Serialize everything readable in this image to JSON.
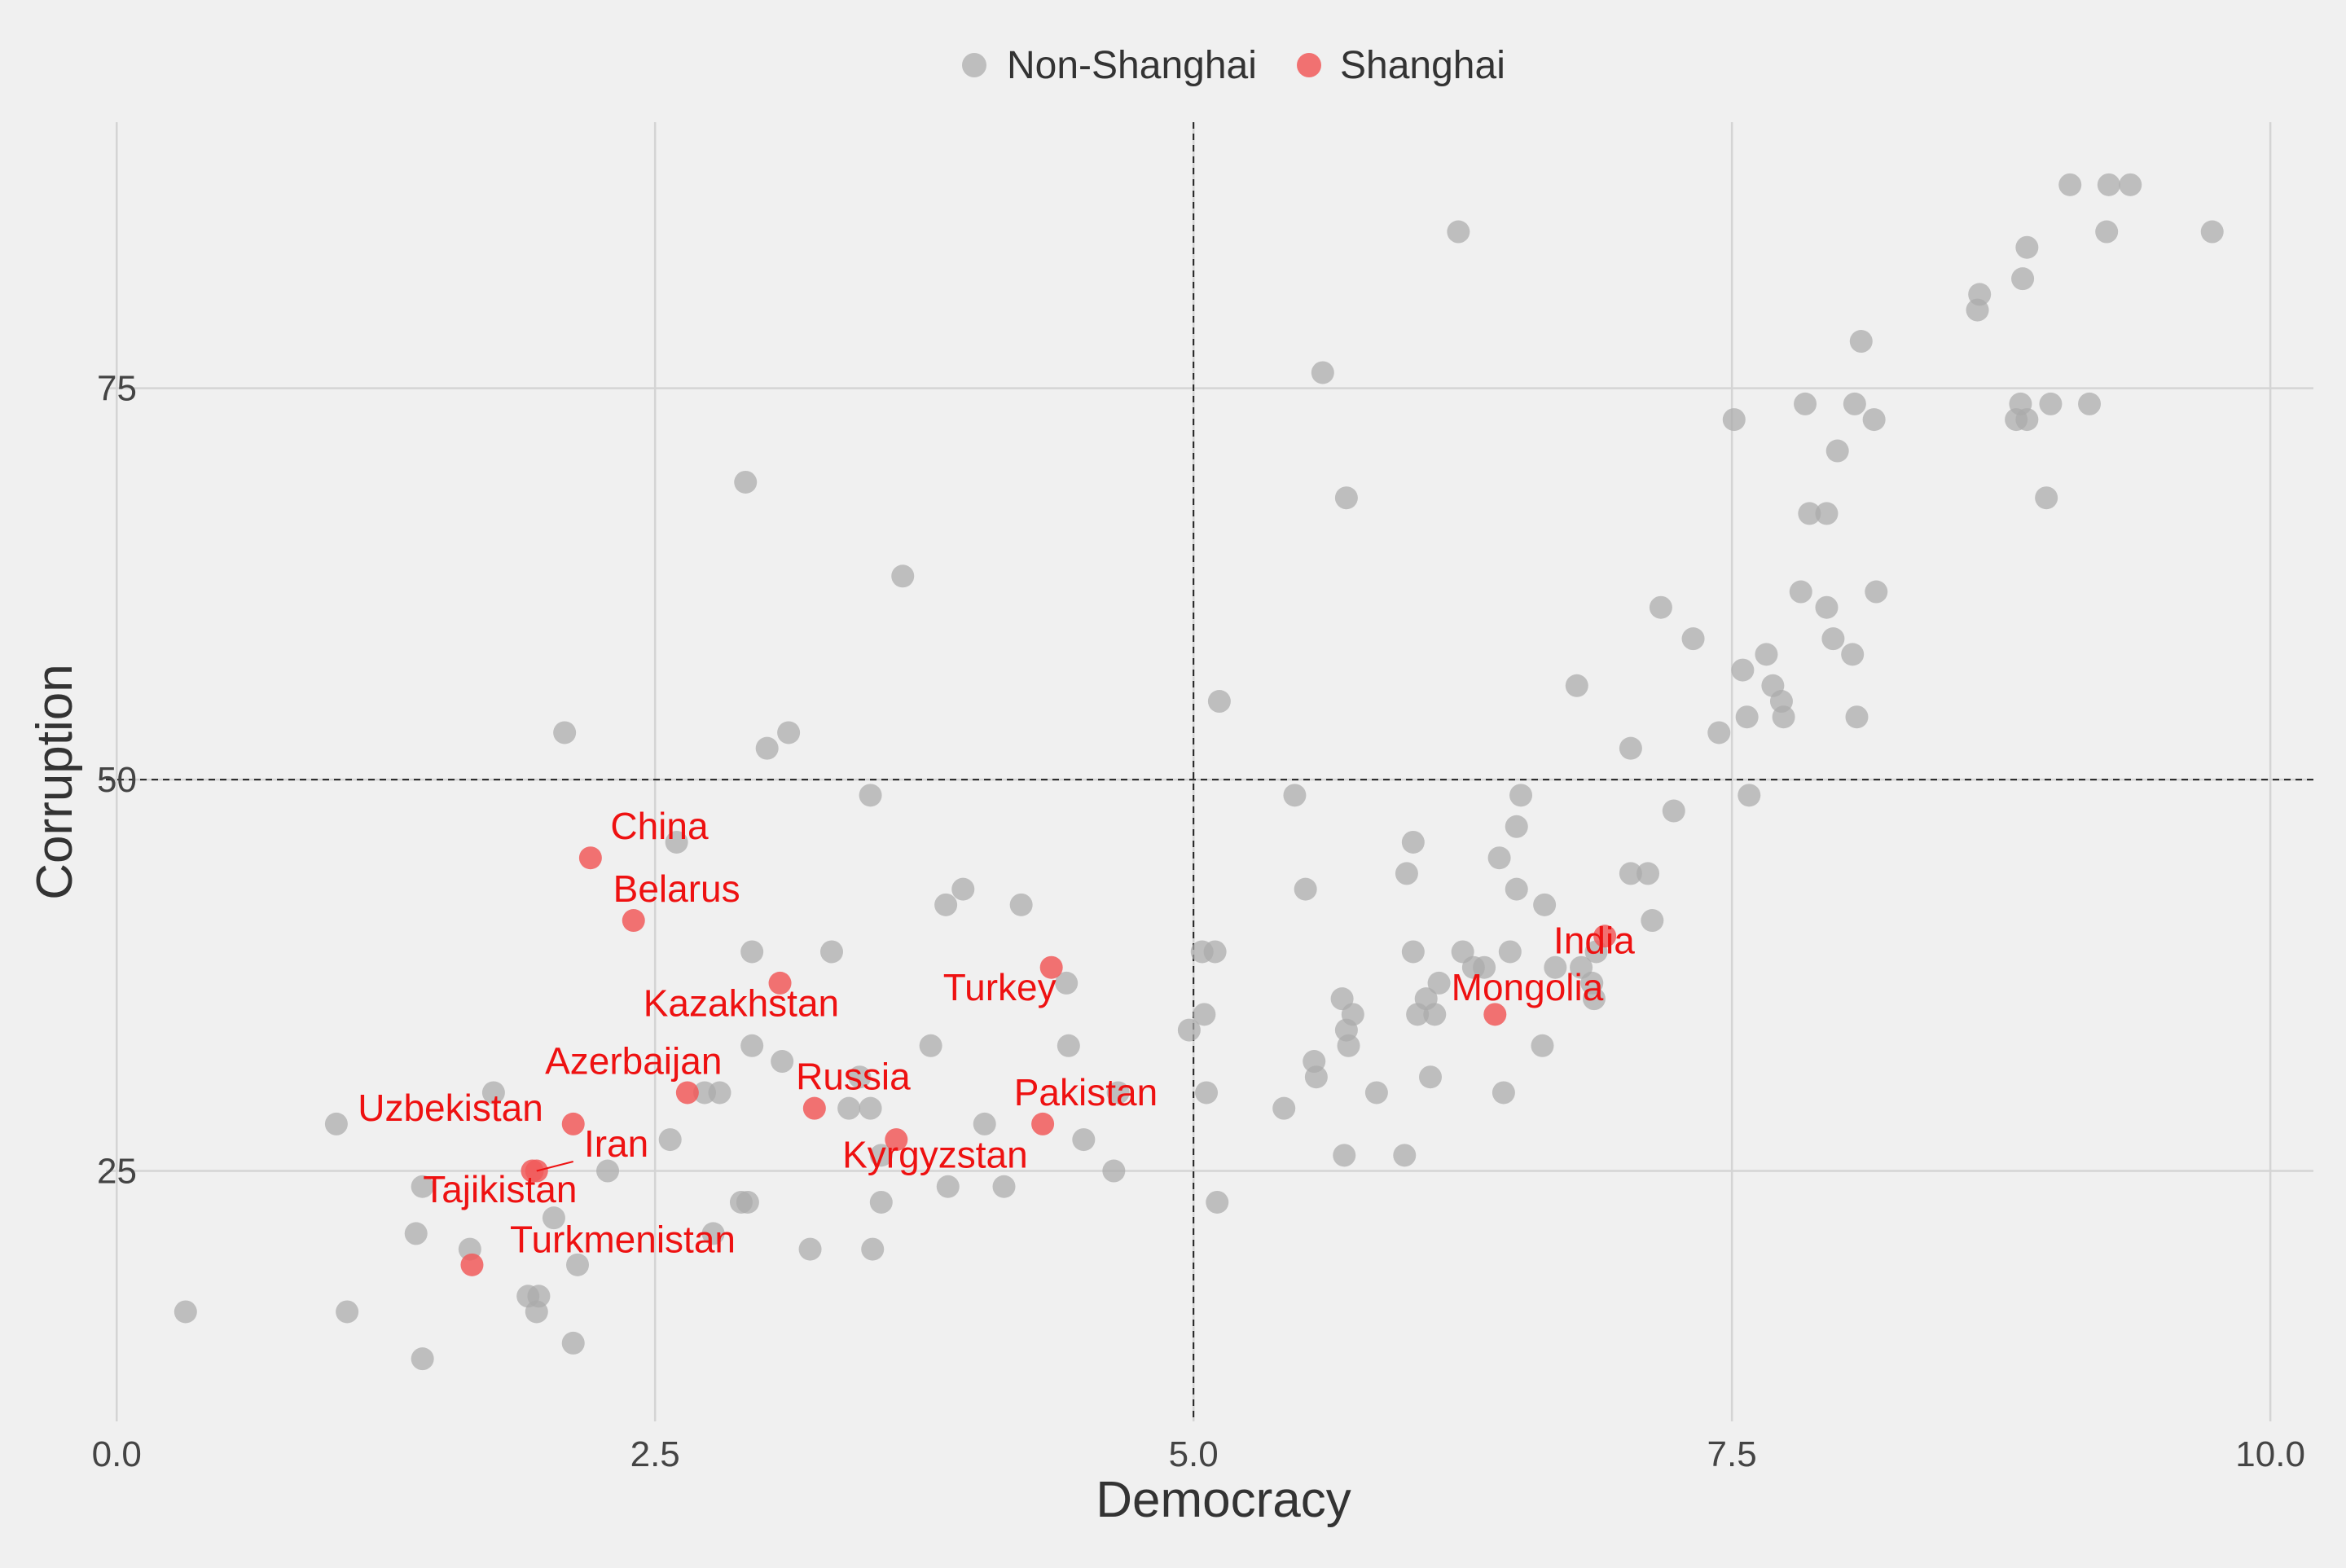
{
  "chart_data": {
    "type": "scatter",
    "title": "",
    "xlabel": "Democracy",
    "ylabel": "Corruption",
    "xlim": [
      -0.05,
      10.2
    ],
    "ylim": [
      9,
      92
    ],
    "x_ticks": [
      0.0,
      2.5,
      5.0,
      7.5,
      10.0
    ],
    "x_tick_labels": [
      "0.0",
      "2.5",
      "5.0",
      "7.5",
      "10.0"
    ],
    "y_ticks": [
      25,
      50,
      75
    ],
    "y_tick_labels": [
      "25",
      "50",
      "75"
    ],
    "grid": true,
    "reference_lines": {
      "x": 5.0,
      "y": 50,
      "style": "dashed"
    },
    "legend": {
      "position": "top",
      "entries": [
        {
          "label": "Non-Shanghai",
          "color": "#aaaaaa"
        },
        {
          "label": "Shanghai",
          "color": "#f15a5a"
        }
      ]
    },
    "colors": {
      "non_shanghai": "#aaaaaa",
      "shanghai": "#f15a5a",
      "label_text": "#ee1111",
      "grid": "#d4d4d4",
      "axis_text": "#444444",
      "title_text": "#333333"
    },
    "series": [
      {
        "name": "Non-Shanghai",
        "points": [
          [
            0.32,
            16
          ],
          [
            1.07,
            16
          ],
          [
            1.02,
            28
          ],
          [
            1.42,
            13
          ],
          [
            1.42,
            24
          ],
          [
            1.39,
            21
          ],
          [
            1.64,
            20
          ],
          [
            1.75,
            30
          ],
          [
            1.91,
            17
          ],
          [
            1.95,
            16
          ],
          [
            1.96,
            17
          ],
          [
            2.03,
            22
          ],
          [
            2.08,
            53
          ],
          [
            2.12,
            14
          ],
          [
            2.14,
            19
          ],
          [
            2.28,
            25
          ],
          [
            2.57,
            27
          ],
          [
            2.6,
            46
          ],
          [
            2.73,
            30
          ],
          [
            2.77,
            21
          ],
          [
            2.8,
            30
          ],
          [
            2.9,
            23
          ],
          [
            2.93,
            23
          ],
          [
            2.95,
            33
          ],
          [
            2.95,
            39
          ],
          [
            2.92,
            69
          ],
          [
            3.02,
            52
          ],
          [
            3.12,
            53
          ],
          [
            3.09,
            32
          ],
          [
            3.22,
            20
          ],
          [
            3.32,
            39
          ],
          [
            3.4,
            29
          ],
          [
            3.45,
            31
          ],
          [
            3.5,
            29
          ],
          [
            3.51,
            20
          ],
          [
            3.5,
            49
          ],
          [
            3.55,
            23
          ],
          [
            3.55,
            26
          ],
          [
            3.65,
            63
          ],
          [
            3.78,
            33
          ],
          [
            3.85,
            42
          ],
          [
            3.86,
            24
          ],
          [
            3.93,
            43
          ],
          [
            4.03,
            28
          ],
          [
            4.12,
            24
          ],
          [
            4.2,
            42
          ],
          [
            4.41,
            37
          ],
          [
            4.42,
            33
          ],
          [
            4.49,
            27
          ],
          [
            4.63,
            25
          ],
          [
            4.65,
            30
          ],
          [
            4.98,
            34
          ],
          [
            5.05,
            35
          ],
          [
            5.04,
            39
          ],
          [
            5.06,
            30
          ],
          [
            5.1,
            39
          ],
          [
            5.11,
            23
          ],
          [
            5.12,
            55
          ],
          [
            5.42,
            29
          ],
          [
            5.47,
            49
          ],
          [
            5.52,
            43
          ],
          [
            5.56,
            32
          ],
          [
            5.57,
            31
          ],
          [
            5.6,
            76
          ],
          [
            5.69,
            36
          ],
          [
            5.7,
            26
          ],
          [
            5.71,
            34
          ],
          [
            5.72,
            33
          ],
          [
            5.74,
            35
          ],
          [
            5.71,
            68
          ],
          [
            5.85,
            30
          ],
          [
            5.98,
            26
          ],
          [
            5.99,
            44
          ],
          [
            6.02,
            46
          ],
          [
            6.02,
            39
          ],
          [
            6.04,
            35
          ],
          [
            6.08,
            36
          ],
          [
            6.1,
            31
          ],
          [
            6.12,
            35
          ],
          [
            6.14,
            37
          ],
          [
            6.23,
            85
          ],
          [
            6.25,
            39
          ],
          [
            6.3,
            38
          ],
          [
            6.35,
            38
          ],
          [
            6.42,
            45
          ],
          [
            6.44,
            30
          ],
          [
            6.47,
            39
          ],
          [
            6.5,
            43
          ],
          [
            6.5,
            47
          ],
          [
            6.52,
            49
          ],
          [
            6.62,
            33
          ],
          [
            6.63,
            42
          ],
          [
            6.68,
            38
          ],
          [
            6.8,
            38
          ],
          [
            6.78,
            56
          ],
          [
            6.85,
            37
          ],
          [
            6.86,
            36
          ],
          [
            6.87,
            39
          ],
          [
            7.03,
            44
          ],
          [
            7.03,
            52
          ],
          [
            7.11,
            44
          ],
          [
            7.13,
            41
          ],
          [
            7.17,
            61
          ],
          [
            7.23,
            48
          ],
          [
            7.32,
            59
          ],
          [
            7.44,
            53
          ],
          [
            7.51,
            73
          ],
          [
            7.55,
            57
          ],
          [
            7.57,
            54
          ],
          [
            7.58,
            49
          ],
          [
            7.66,
            58
          ],
          [
            7.69,
            56
          ],
          [
            7.73,
            55
          ],
          [
            7.74,
            54
          ],
          [
            7.82,
            62
          ],
          [
            7.84,
            74
          ],
          [
            7.86,
            67
          ],
          [
            7.94,
            67
          ],
          [
            7.94,
            61
          ],
          [
            7.97,
            59
          ],
          [
            7.99,
            71
          ],
          [
            8.07,
            74
          ],
          [
            8.06,
            58
          ],
          [
            8.08,
            54
          ],
          [
            8.1,
            78
          ],
          [
            8.16,
            73
          ],
          [
            8.17,
            62
          ],
          [
            8.64,
            80
          ],
          [
            8.65,
            81
          ],
          [
            8.82,
            73
          ],
          [
            8.84,
            74
          ],
          [
            8.85,
            82
          ],
          [
            8.87,
            73
          ],
          [
            8.87,
            84
          ],
          [
            8.96,
            68
          ],
          [
            8.98,
            74
          ],
          [
            9.07,
            88
          ],
          [
            9.16,
            74
          ],
          [
            9.24,
            85
          ],
          [
            9.25,
            88
          ],
          [
            9.35,
            88
          ],
          [
            9.73,
            85
          ]
        ]
      },
      {
        "name": "Shanghai",
        "points": [
          {
            "x": 1.65,
            "y": 19,
            "label": "Turkmenistan"
          },
          {
            "x": 1.93,
            "y": 25,
            "label": "Tajikistan"
          },
          {
            "x": 1.95,
            "y": 25,
            "label": "Iran"
          },
          {
            "x": 2.12,
            "y": 28,
            "label": "Uzbekistan"
          },
          {
            "x": 2.2,
            "y": 45,
            "label": "China"
          },
          {
            "x": 2.4,
            "y": 41,
            "label": "Belarus"
          },
          {
            "x": 2.65,
            "y": 30,
            "label": "Azerbaijan"
          },
          {
            "x": 3.08,
            "y": 37,
            "label": "Kazakhstan"
          },
          {
            "x": 3.24,
            "y": 29,
            "label": "Russia"
          },
          {
            "x": 3.62,
            "y": 27,
            "label": "Kyrgyzstan"
          },
          {
            "x": 4.3,
            "y": 28,
            "label": "Pakistan"
          },
          {
            "x": 4.34,
            "y": 38,
            "label": "Turkey"
          },
          {
            "x": 6.4,
            "y": 35,
            "label": "Mongolia"
          },
          {
            "x": 6.91,
            "y": 40,
            "label": "India"
          }
        ]
      }
    ],
    "annotations": [
      {
        "text": "China",
        "x": 2.52,
        "y": 46.2,
        "anchor": "middle"
      },
      {
        "text": "Belarus",
        "x": 2.6,
        "y": 42.2,
        "anchor": "middle"
      },
      {
        "text": "Kazakhstan",
        "x": 2.9,
        "y": 34.9,
        "anchor": "middle"
      },
      {
        "text": "Turkey",
        "x": 4.1,
        "y": 35.9,
        "anchor": "middle"
      },
      {
        "text": "Azerbaijan",
        "x": 2.4,
        "y": 31.2,
        "anchor": "middle"
      },
      {
        "text": "Russia",
        "x": 3.42,
        "y": 30.2,
        "anchor": "middle"
      },
      {
        "text": "Uzbekistan",
        "x": 1.55,
        "y": 28.2,
        "anchor": "middle"
      },
      {
        "text": "Pakistan",
        "x": 4.5,
        "y": 29.2,
        "anchor": "middle"
      },
      {
        "text": "Iran",
        "x": 2.32,
        "y": 25.9,
        "anchor": "middle"
      },
      {
        "text": "Kyrgyzstan",
        "x": 3.8,
        "y": 25.2,
        "anchor": "middle"
      },
      {
        "text": "Tajikistan",
        "x": 1.78,
        "y": 23.0,
        "anchor": "middle"
      },
      {
        "text": "Turkmenistan",
        "x": 2.35,
        "y": 19.8,
        "anchor": "middle"
      },
      {
        "text": "Mongolia",
        "x": 6.55,
        "y": 35.9,
        "anchor": "middle"
      },
      {
        "text": "India",
        "x": 6.86,
        "y": 38.9,
        "anchor": "middle"
      }
    ],
    "leader_lines": [
      {
        "from": {
          "x": 1.95,
          "y": 25
        },
        "to": {
          "x": 2.12,
          "y": 25.6
        }
      }
    ]
  }
}
